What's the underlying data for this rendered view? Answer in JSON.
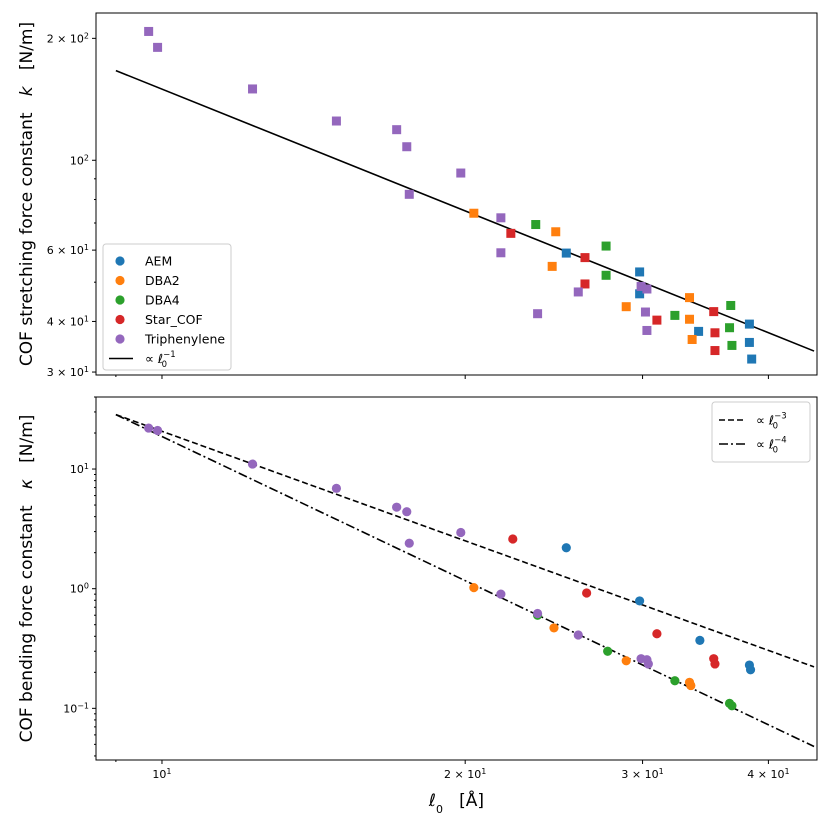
{
  "colors": {
    "AEM": "#1f77b4",
    "DBA2": "#ff7f0e",
    "DBA4": "#2ca02c",
    "Star_COF": "#d62728",
    "Triphenylene": "#9467bd"
  },
  "chart_data": [
    {
      "type": "scatter",
      "xscale": "log",
      "yscale": "log",
      "xlim": [
        8.6,
        44.7
      ],
      "ylim": [
        29.5,
        231
      ],
      "marker": "square",
      "ylabel": "COF stretching force constant   k   [N/m]",
      "ylabel_parts": {
        "text": "COF stretching force constant",
        "sym": "k",
        "unit": "[N/m]"
      },
      "xticks": [
        {
          "value": 10
        },
        {
          "value": 20
        },
        {
          "value": 30
        },
        {
          "value": 40
        }
      ],
      "yticks": [
        {
          "value": 30,
          "label": "3 × 10^1"
        },
        {
          "value": 40,
          "label": "4 × 10^1"
        },
        {
          "value": 60,
          "label": "6 × 10^1"
        },
        {
          "value": 100,
          "label": "10^2"
        },
        {
          "value": 200,
          "label": "2 × 10^2"
        }
      ],
      "series": [
        {
          "name": "AEM",
          "color": "#1f77b4",
          "x": [
            25.2,
            29.8,
            29.8,
            34.1,
            38.3,
            38.3,
            38.5
          ],
          "y": [
            59,
            53,
            46.8,
            37.8,
            39.4,
            35.5,
            32.3
          ]
        },
        {
          "name": "DBA2",
          "color": "#ff7f0e",
          "x": [
            20.4,
            24.4,
            24.6,
            28.9,
            33.4,
            33.4,
            33.6
          ],
          "y": [
            74,
            54.7,
            66.6,
            43.5,
            45.8,
            40.5,
            36.1
          ]
        },
        {
          "name": "DBA4",
          "color": "#2ca02c",
          "x": [
            23.5,
            27.6,
            27.6,
            32.3,
            36.7,
            36.6,
            36.8
          ],
          "y": [
            69.4,
            61.4,
            52,
            41.4,
            43.8,
            38.6,
            34.9
          ]
        },
        {
          "name": "Star_COF",
          "color": "#d62728",
          "x": [
            22.2,
            26.3,
            26.3,
            31.0,
            35.3,
            35.4,
            35.4
          ],
          "y": [
            66,
            57.5,
            49.5,
            40.3,
            42.3,
            37.5,
            33.9
          ]
        },
        {
          "name": "Triphenylene",
          "color": "#9467bd",
          "x": [
            9.7,
            9.9,
            12.3,
            14.9,
            17.1,
            17.5,
            17.6,
            19.8,
            21.7,
            21.7,
            23.6,
            25.9,
            29.9,
            30.3,
            30.2,
            30.3
          ],
          "y": [
            208,
            190,
            150,
            125,
            119,
            108,
            82.4,
            93,
            72.1,
            59.1,
            41.8,
            47.3,
            48.8,
            48.1,
            42.2,
            38
          ]
        }
      ],
      "fit_line": {
        "label": "∝ ℓ0^-1",
        "exponent": -1,
        "x": [
          9.0,
          44.4
        ],
        "y": [
          166.5,
          33.8
        ],
        "style": "solid"
      },
      "legend": {
        "placement": "lower-left",
        "entries": [
          "AEM",
          "DBA2",
          "DBA4",
          "Star_COF",
          "Triphenylene"
        ],
        "line_entry": {
          "prefix": "∝ ",
          "base": "ℓ",
          "sub": "0",
          "sup": "−1"
        }
      }
    },
    {
      "type": "scatter",
      "xscale": "log",
      "yscale": "log",
      "xlim": [
        8.6,
        44.7
      ],
      "ylim": [
        0.037,
        40
      ],
      "marker": "circle",
      "xlabel": "ℓ0   [Å]",
      "xlabel_parts": {
        "base": "ℓ",
        "sub": "0",
        "unit": "[Å]"
      },
      "ylabel": "COF bending force constant   κ   [N/m]",
      "ylabel_parts": {
        "text": "COF bending force constant",
        "sym": "κ",
        "unit": "[N/m]"
      },
      "xticks": [
        {
          "value": 10,
          "label": "10^1"
        },
        {
          "value": 20,
          "label": "2 × 10^1"
        },
        {
          "value": 30,
          "label": "3 × 10^1"
        },
        {
          "value": 40,
          "label": "4 × 10^1"
        }
      ],
      "yticks": [
        {
          "value": 0.1,
          "label": "10^-1"
        },
        {
          "value": 1,
          "label": "10^0"
        },
        {
          "value": 10,
          "label": "10^1"
        }
      ],
      "series": [
        {
          "name": "AEM",
          "color": "#1f77b4",
          "x": [
            25.2,
            29.8,
            34.2,
            38.3,
            38.4
          ],
          "y": [
            2.2,
            0.79,
            0.37,
            0.23,
            0.21
          ]
        },
        {
          "name": "DBA2",
          "color": "#ff7f0e",
          "x": [
            20.4,
            24.5,
            28.9,
            33.4,
            33.5
          ],
          "y": [
            1.02,
            0.47,
            0.25,
            0.165,
            0.155
          ]
        },
        {
          "name": "DBA4",
          "color": "#2ca02c",
          "x": [
            23.6,
            27.7,
            32.3,
            36.6,
            36.8
          ],
          "y": [
            0.6,
            0.3,
            0.17,
            0.11,
            0.105
          ]
        },
        {
          "name": "Star_COF",
          "color": "#d62728",
          "x": [
            22.3,
            26.4,
            31.0,
            35.3,
            35.4
          ],
          "y": [
            2.6,
            0.92,
            0.42,
            0.26,
            0.235
          ]
        },
        {
          "name": "Triphenylene",
          "color": "#9467bd",
          "x": [
            9.7,
            9.9,
            12.3,
            14.9,
            17.1,
            17.5,
            17.6,
            19.8,
            21.7,
            23.6,
            25.9,
            29.9,
            30.3,
            30.4
          ],
          "y": [
            22,
            21,
            11,
            6.9,
            4.8,
            4.4,
            2.4,
            2.95,
            0.9,
            0.62,
            0.41,
            0.26,
            0.255,
            0.235
          ]
        }
      ],
      "fit_lines": [
        {
          "label": "∝ ℓ0^-3",
          "exponent": -3,
          "x": [
            9.0,
            44.4
          ],
          "y": [
            28.5,
            0.222
          ],
          "style": "dashed"
        },
        {
          "label": "∝ ℓ0^-4",
          "exponent": -4,
          "x": [
            9.0,
            44.4
          ],
          "y": [
            28.5,
            0.048
          ],
          "style": "dashdot"
        }
      ],
      "legend": {
        "placement": "top-right",
        "entries": [
          {
            "prefix": "∝ ",
            "base": "ℓ",
            "sub": "0",
            "sup": "−3"
          },
          {
            "prefix": "∝ ",
            "base": "ℓ",
            "sub": "0",
            "sup": "−4"
          }
        ]
      }
    }
  ]
}
